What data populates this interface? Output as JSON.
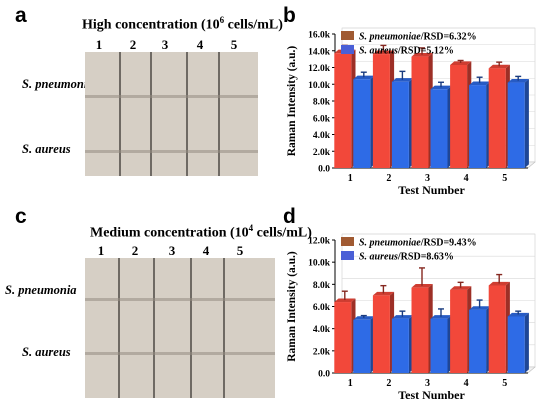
{
  "panels": {
    "a": {
      "letter": "a",
      "title_prefix": "High concentration (10",
      "title_sup": "6",
      "title_suffix": " cells/mL)",
      "lanes": [
        "1",
        "2",
        "3",
        "4",
        "5"
      ],
      "rows": [
        "S. pneumonia",
        "S. aureus"
      ]
    },
    "c": {
      "letter": "c",
      "title_prefix": "Medium concentration (10",
      "title_sup": "4",
      "title_suffix": " cells/mL)",
      "lanes": [
        "1",
        "2",
        "3",
        "4",
        "5"
      ],
      "rows": [
        "S. pneumonia",
        "S. aureus"
      ]
    },
    "b": {
      "letter": "b"
    },
    "d": {
      "letter": "d"
    }
  },
  "colors": {
    "pneumoniae_bar": "#f2483a",
    "pneumoniae_legend": "#a05a32",
    "aureus_bar": "#2e6be6",
    "aureus_legend": "#4a5fd6",
    "strip": "#d6cfc5"
  },
  "chart_data": [
    {
      "type": "bar",
      "panel": "b",
      "categories": [
        "1",
        "2",
        "3",
        "4",
        "5"
      ],
      "xlabel": "Test Number",
      "ylabel": "Raman Intensity (a.u.)",
      "ylim": [
        0,
        16000
      ],
      "yticks": [
        "0.0",
        "2.0k",
        "4.0k",
        "6.0k",
        "8.0k",
        "10.0k",
        "12.0k",
        "14.0k",
        "16.0k"
      ],
      "legend_position": "top-left",
      "series": [
        {
          "name_italic": "S. pneumoniae",
          "name_rest": "/RSD=6.32%",
          "values": [
            13700,
            13600,
            13300,
            12300,
            11900
          ],
          "errors": [
            700,
            800,
            800,
            300,
            500
          ]
        },
        {
          "name_italic": "S. aureus",
          "name_rest": "/RSD=5.12%",
          "values": [
            10600,
            10300,
            9400,
            9900,
            10200
          ],
          "errors": [
            600,
            1000,
            600,
            700,
            500
          ]
        }
      ]
    },
    {
      "type": "bar",
      "panel": "d",
      "categories": [
        "1",
        "2",
        "3",
        "4",
        "5"
      ],
      "xlabel": "Test Number",
      "ylabel": "Raman Intensity (a.u.)",
      "ylim": [
        0,
        12000
      ],
      "yticks": [
        "0.0",
        "2.0k",
        "4.0k",
        "6.0k",
        "8.0k",
        "10.0k",
        "12.0k"
      ],
      "legend_position": "top-left",
      "series": [
        {
          "name_italic": "S. pneumoniae",
          "name_rest": "/RSD=9.43%",
          "values": [
            6400,
            7000,
            7700,
            7500,
            7900
          ],
          "errors": [
            800,
            700,
            1600,
            500,
            800
          ]
        },
        {
          "name_italic": "S. aureus",
          "name_rest": "/RSD=8.63%",
          "values": [
            4800,
            4900,
            4900,
            5700,
            5100
          ],
          "errors": [
            200,
            500,
            700,
            700,
            300
          ]
        }
      ]
    }
  ]
}
